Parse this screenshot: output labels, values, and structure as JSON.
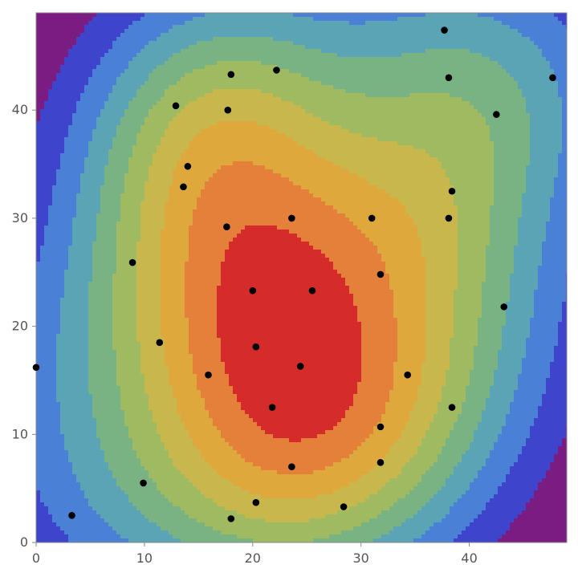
{
  "chart_data": {
    "type": "contour",
    "title": "",
    "xlabel": "",
    "ylabel": "",
    "xlim": [
      0,
      49
    ],
    "ylim": [
      0,
      49
    ],
    "x_ticks": [
      0,
      10,
      20,
      30,
      40
    ],
    "y_ticks": [
      0,
      10,
      20,
      30,
      40
    ],
    "x_tick_labels": [
      "0",
      "10",
      "20",
      "30",
      "40"
    ],
    "y_tick_labels": [
      "0",
      "10",
      "20",
      "30",
      "40"
    ],
    "grid": false,
    "legend": "none",
    "contour_colors": [
      "#7b1c82",
      "#3f44cc",
      "#4a80d6",
      "#5ba4b6",
      "#79b383",
      "#9fba61",
      "#c7b74c",
      "#dfa83c",
      "#e5803a",
      "#d62b2b"
    ],
    "contour_line_color": "#3a3a3a",
    "points": [
      {
        "x": 0,
        "y": 16.2
      },
      {
        "x": 3.3,
        "y": 2.5
      },
      {
        "x": 8.9,
        "y": 25.9
      },
      {
        "x": 9.9,
        "y": 5.5
      },
      {
        "x": 11.4,
        "y": 18.5
      },
      {
        "x": 12.9,
        "y": 40.4
      },
      {
        "x": 13.6,
        "y": 32.9
      },
      {
        "x": 14.0,
        "y": 34.8
      },
      {
        "x": 15.9,
        "y": 15.5
      },
      {
        "x": 17.6,
        "y": 29.2
      },
      {
        "x": 17.7,
        "y": 40.0
      },
      {
        "x": 18.0,
        "y": 43.3
      },
      {
        "x": 18.0,
        "y": 2.2
      },
      {
        "x": 20.0,
        "y": 23.3
      },
      {
        "x": 20.3,
        "y": 18.1
      },
      {
        "x": 20.3,
        "y": 3.7
      },
      {
        "x": 21.8,
        "y": 12.5
      },
      {
        "x": 22.2,
        "y": 43.7
      },
      {
        "x": 23.6,
        "y": 30.0
      },
      {
        "x": 23.6,
        "y": 7.0
      },
      {
        "x": 24.4,
        "y": 16.3
      },
      {
        "x": 25.5,
        "y": 23.3
      },
      {
        "x": 28.4,
        "y": 3.3
      },
      {
        "x": 31.0,
        "y": 30.0
      },
      {
        "x": 31.8,
        "y": 24.8
      },
      {
        "x": 31.8,
        "y": 10.7
      },
      {
        "x": 31.8,
        "y": 7.4
      },
      {
        "x": 34.3,
        "y": 15.5
      },
      {
        "x": 37.7,
        "y": 47.4
      },
      {
        "x": 38.1,
        "y": 43.0
      },
      {
        "x": 38.1,
        "y": 30.0
      },
      {
        "x": 38.4,
        "y": 32.5
      },
      {
        "x": 38.4,
        "y": 12.5
      },
      {
        "x": 42.5,
        "y": 39.6
      },
      {
        "x": 43.2,
        "y": 21.8
      },
      {
        "x": 47.7,
        "y": 43.0
      }
    ]
  }
}
